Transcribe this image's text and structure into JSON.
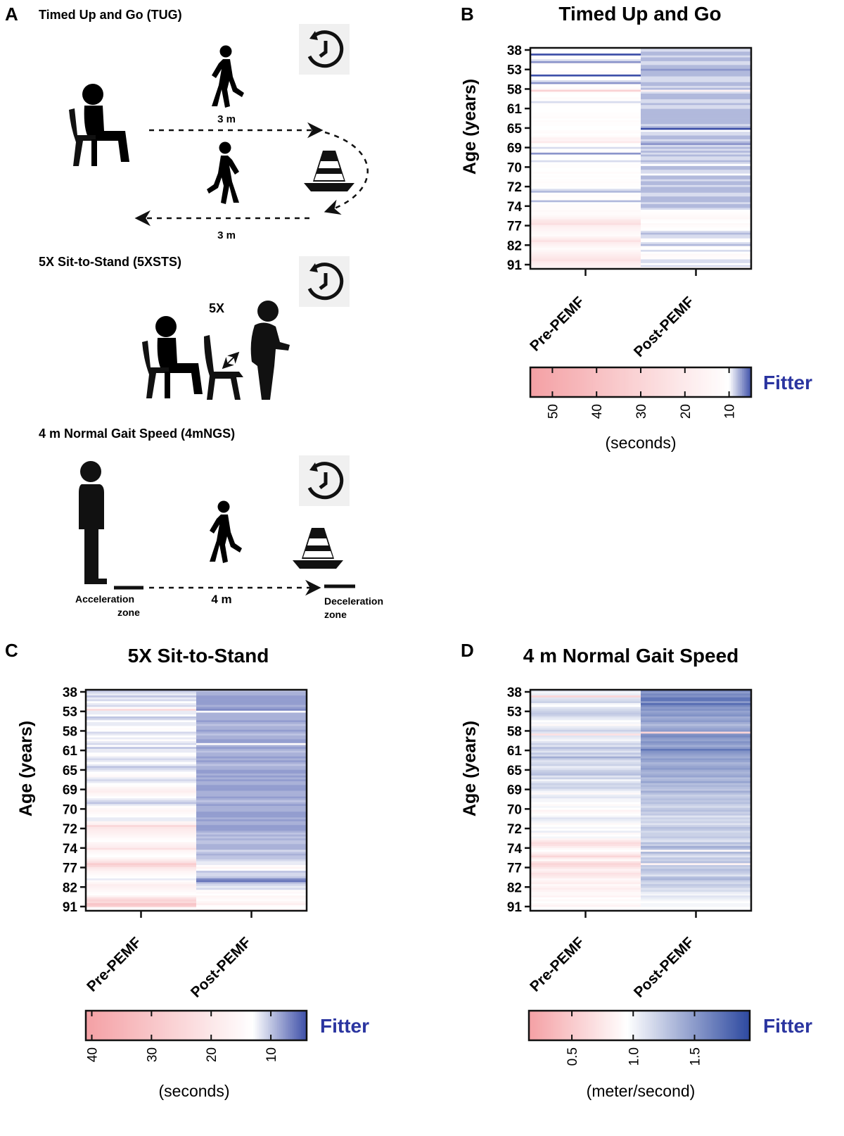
{
  "panel_a": {
    "letter": "A",
    "tug": {
      "title": "Timed Up and Go (TUG)",
      "dist_out": "3 m",
      "dist_back": "3 m"
    },
    "sts": {
      "title": "5X Sit-to-Stand (5XSTS)",
      "reps": "5X"
    },
    "gait": {
      "title": "4 m Normal Gait Speed (4mNGS)",
      "distance": "4 m",
      "accel_line1": "Acceleration",
      "accel_line2": "zone",
      "decel_line1": "Deceleration",
      "decel_line2": "zone"
    },
    "icons": [
      "person-sitting-icon",
      "person-walking-icon",
      "traffic-cone-icon",
      "stopwatch-icon",
      "chair-icon",
      "person-standing-icon"
    ]
  },
  "colors": {
    "low": "#f4a0a4",
    "mid": "#ffffff",
    "high": "#3d4fa8",
    "high_gait": "#2d49a0",
    "fitter": "#2b35a0"
  },
  "chart_data": [
    {
      "type": "heatmap",
      "letter": "B",
      "title": "Timed Up and Go",
      "ylabel": "Age (years)",
      "yticks": [
        "38",
        "53",
        "58",
        "61",
        "65",
        "69",
        "70",
        "72",
        "74",
        "77",
        "82",
        "91"
      ],
      "columns": [
        "Pre-PEMF",
        "Post-PEMF"
      ],
      "colorbar": {
        "ticks": [
          "50",
          "40",
          "30",
          "20",
          "10"
        ],
        "range": [
          55,
          5
        ],
        "midpoint": 10,
        "label": "(seconds)",
        "direction_label": "Fitter"
      },
      "row_values": {
        "pre": [
          10,
          10,
          10,
          5,
          11,
          11,
          9,
          7,
          12,
          10,
          10,
          10,
          12,
          12,
          5,
          10,
          10,
          9,
          7,
          11,
          11,
          13,
          32,
          11,
          10,
          10,
          12,
          11,
          9,
          11,
          10,
          10,
          10,
          10,
          11,
          11,
          12,
          10,
          12,
          11,
          11,
          10,
          10,
          11,
          12,
          10,
          12,
          16,
          15,
          20,
          10,
          10,
          9,
          10,
          12,
          7,
          10,
          10,
          10,
          9,
          10,
          11,
          11,
          10,
          10,
          12,
          10,
          11,
          10,
          11,
          12,
          11,
          11,
          10,
          9,
          8,
          10,
          12,
          11,
          11,
          8,
          10,
          12,
          12,
          12,
          13,
          12,
          12,
          14,
          16,
          21,
          23,
          25,
          18,
          16,
          15,
          14,
          13,
          12,
          16,
          20,
          24,
          18,
          16,
          14,
          12,
          14,
          16,
          18,
          20,
          22,
          24,
          20,
          18,
          17,
          15
        ],
        "post": [
          9,
          9,
          8,
          8,
          9,
          8,
          8,
          9,
          9,
          8,
          8,
          7,
          8,
          8,
          8,
          9,
          9,
          9,
          8,
          8,
          9,
          8,
          16,
          9,
          8,
          8,
          8,
          9,
          9,
          8,
          9,
          9,
          8,
          8,
          8,
          8,
          8,
          8,
          8,
          8,
          9,
          8,
          5,
          10,
          9,
          9,
          8,
          8,
          9,
          8,
          7,
          9,
          8,
          9,
          8,
          9,
          8,
          9,
          9,
          8,
          9,
          10,
          8,
          8,
          9,
          9,
          10,
          8,
          8,
          9,
          8,
          8,
          9,
          8,
          8,
          8,
          9,
          9,
          8,
          8,
          8,
          9,
          8,
          8,
          9,
          10,
          11,
          12,
          13,
          14,
          11,
          10,
          13,
          12,
          11,
          10,
          9,
          8,
          9,
          9,
          11,
          10,
          9,
          8,
          11,
          10,
          9,
          10,
          13,
          12,
          11,
          9,
          9,
          10,
          9,
          14
        ]
      }
    },
    {
      "type": "heatmap",
      "letter": "C",
      "title": "5X Sit-to-Stand",
      "ylabel": "Age (years)",
      "yticks": [
        "38",
        "53",
        "58",
        "61",
        "65",
        "69",
        "70",
        "72",
        "74",
        "77",
        "82",
        "91"
      ],
      "columns": [
        "Pre-PEMF",
        "Post-PEMF"
      ],
      "colorbar": {
        "ticks": [
          "40",
          "30",
          "20",
          "10"
        ],
        "range": [
          41,
          4
        ],
        "midpoint": 13,
        "label": "(seconds)",
        "direction_label": "Fitter"
      },
      "row_values": {
        "pre": [
          10,
          11,
          12,
          10,
          12,
          11,
          13,
          12,
          11,
          14,
          24,
          12,
          12,
          13,
          10,
          11,
          13,
          12,
          12,
          13,
          14,
          13,
          11,
          12,
          13,
          12,
          14,
          12,
          11,
          13,
          10,
          12,
          12,
          13,
          14,
          12,
          11,
          12,
          13,
          12,
          10,
          11,
          12,
          13,
          14,
          15,
          12,
          11,
          12,
          13,
          14,
          16,
          17,
          18,
          16,
          15,
          13,
          12,
          11,
          10,
          12,
          14,
          15,
          16,
          15,
          14,
          13,
          12,
          12,
          16,
          17,
          25,
          20,
          19,
          18,
          17,
          16,
          15,
          14,
          13,
          16,
          17,
          18,
          22,
          16,
          15,
          14,
          13,
          16,
          19,
          22,
          28,
          25,
          20,
          18,
          16,
          15,
          14,
          13,
          12,
          14,
          16,
          18,
          17,
          16,
          15,
          14,
          13,
          17,
          22,
          26,
          24,
          30,
          28,
          15,
          14
        ],
        "post": [
          10,
          9,
          9,
          8,
          8,
          8,
          8,
          8,
          9,
          8,
          7,
          14,
          9,
          9,
          9,
          9,
          8,
          9,
          10,
          9,
          9,
          8,
          9,
          10,
          9,
          9,
          8,
          8,
          14,
          9,
          8,
          9,
          10,
          9,
          9,
          8,
          9,
          8,
          9,
          10,
          9,
          9,
          8,
          8,
          9,
          8,
          9,
          8,
          9,
          9,
          8,
          8,
          8,
          9,
          9,
          9,
          8,
          9,
          10,
          9,
          8,
          9,
          9,
          9,
          8,
          8,
          8,
          9,
          8,
          9,
          9,
          8,
          8,
          8,
          9,
          10,
          9,
          10,
          9,
          10,
          10,
          9,
          9,
          9,
          11,
          10,
          9,
          10,
          10,
          11,
          12,
          12,
          14,
          16,
          13,
          10,
          11,
          11,
          10,
          7,
          6,
          10,
          11,
          12,
          11,
          14,
          15,
          13,
          16,
          15,
          14,
          16,
          18,
          14,
          13,
          17
        ]
      }
    },
    {
      "type": "heatmap",
      "letter": "D",
      "title": "4 m Normal Gait Speed",
      "ylabel": "Age (years)",
      "yticks": [
        "38",
        "53",
        "58",
        "61",
        "65",
        "69",
        "70",
        "72",
        "74",
        "77",
        "82",
        "91"
      ],
      "columns": [
        "Pre-PEMF",
        "Post-PEMF"
      ],
      "colorbar": {
        "ticks": [
          "0.5",
          "1.0",
          "1.5"
        ],
        "range": [
          0.15,
          1.95
        ],
        "midpoint": 0.95,
        "label": "(meter/second)",
        "direction_label": "Fitter"
      },
      "row_values": {
        "pre": [
          1.1,
          1.0,
          1.05,
          0.6,
          1.1,
          1.15,
          1.2,
          1.0,
          0.95,
          1.1,
          1.15,
          1.2,
          1.25,
          1.2,
          1.1,
          1.05,
          0.95,
          1.0,
          0.9,
          1.05,
          1.1,
          1.2,
          1.1,
          0.7,
          1.1,
          1.05,
          1.0,
          1.1,
          1.2,
          1.1,
          1.3,
          1.2,
          1.1,
          1.25,
          1.15,
          1.4,
          1.2,
          1.1,
          1.15,
          1.2,
          1.05,
          1.1,
          1.2,
          1.25,
          1.3,
          1.1,
          1.2,
          1.0,
          1.1,
          1.2,
          1.15,
          1.2,
          1.1,
          1.0,
          0.9,
          1.05,
          1.1,
          1.0,
          1.0,
          0.95,
          0.9,
          1.0,
          0.95,
          0.85,
          0.9,
          0.95,
          1.0,
          1.1,
          1.05,
          1.0,
          0.9,
          0.95,
          1.0,
          0.95,
          1.05,
          0.9,
          0.95,
          1.0,
          0.85,
          0.75,
          0.65,
          0.7,
          0.8,
          0.9,
          0.95,
          0.85,
          0.75,
          0.6,
          0.8,
          0.9,
          0.7,
          0.6,
          0.65,
          0.75,
          0.85,
          0.8,
          0.7,
          0.75,
          0.8,
          0.9,
          0.85,
          0.8,
          0.9,
          0.85,
          0.8,
          0.85,
          0.9,
          0.9,
          0.85,
          0.95,
          0.9,
          0.95,
          0.9,
          0.85,
          0.95,
          1.0
        ],
        "post": [
          1.6,
          1.5,
          1.6,
          1.55,
          1.7,
          1.7,
          1.5,
          1.75,
          1.6,
          1.5,
          1.55,
          1.45,
          1.5,
          1.55,
          1.4,
          1.45,
          1.5,
          1.4,
          1.3,
          1.4,
          1.45,
          1.5,
          0.6,
          1.55,
          1.6,
          1.5,
          1.45,
          1.55,
          1.5,
          1.4,
          1.5,
          1.7,
          1.55,
          1.5,
          1.45,
          1.4,
          1.5,
          1.45,
          1.35,
          1.4,
          1.45,
          1.5,
          1.4,
          1.35,
          1.4,
          1.45,
          1.3,
          1.35,
          1.45,
          1.3,
          1.35,
          1.3,
          1.25,
          1.4,
          1.3,
          1.2,
          1.25,
          1.3,
          1.25,
          1.3,
          1.2,
          1.15,
          1.25,
          1.3,
          1.2,
          1.25,
          1.1,
          1.2,
          1.15,
          1.2,
          1.1,
          1.2,
          1.3,
          1.25,
          1.15,
          1.2,
          1.2,
          1.25,
          1.15,
          1.1,
          1.3,
          1.2,
          1.4,
          1.3,
          0.9,
          1.35,
          1.2,
          1.1,
          1.25,
          1.2,
          1.3,
          0.85,
          1.25,
          1.2,
          1.3,
          1.25,
          1.2,
          1.1,
          1.3,
          1.35,
          1.2,
          1.15,
          1.25,
          1.2,
          1.1,
          1.15,
          1.05,
          1.0,
          1.1,
          1.05,
          1.0,
          0.95,
          1.0,
          1.0,
          0.95,
          1.0
        ]
      }
    }
  ]
}
